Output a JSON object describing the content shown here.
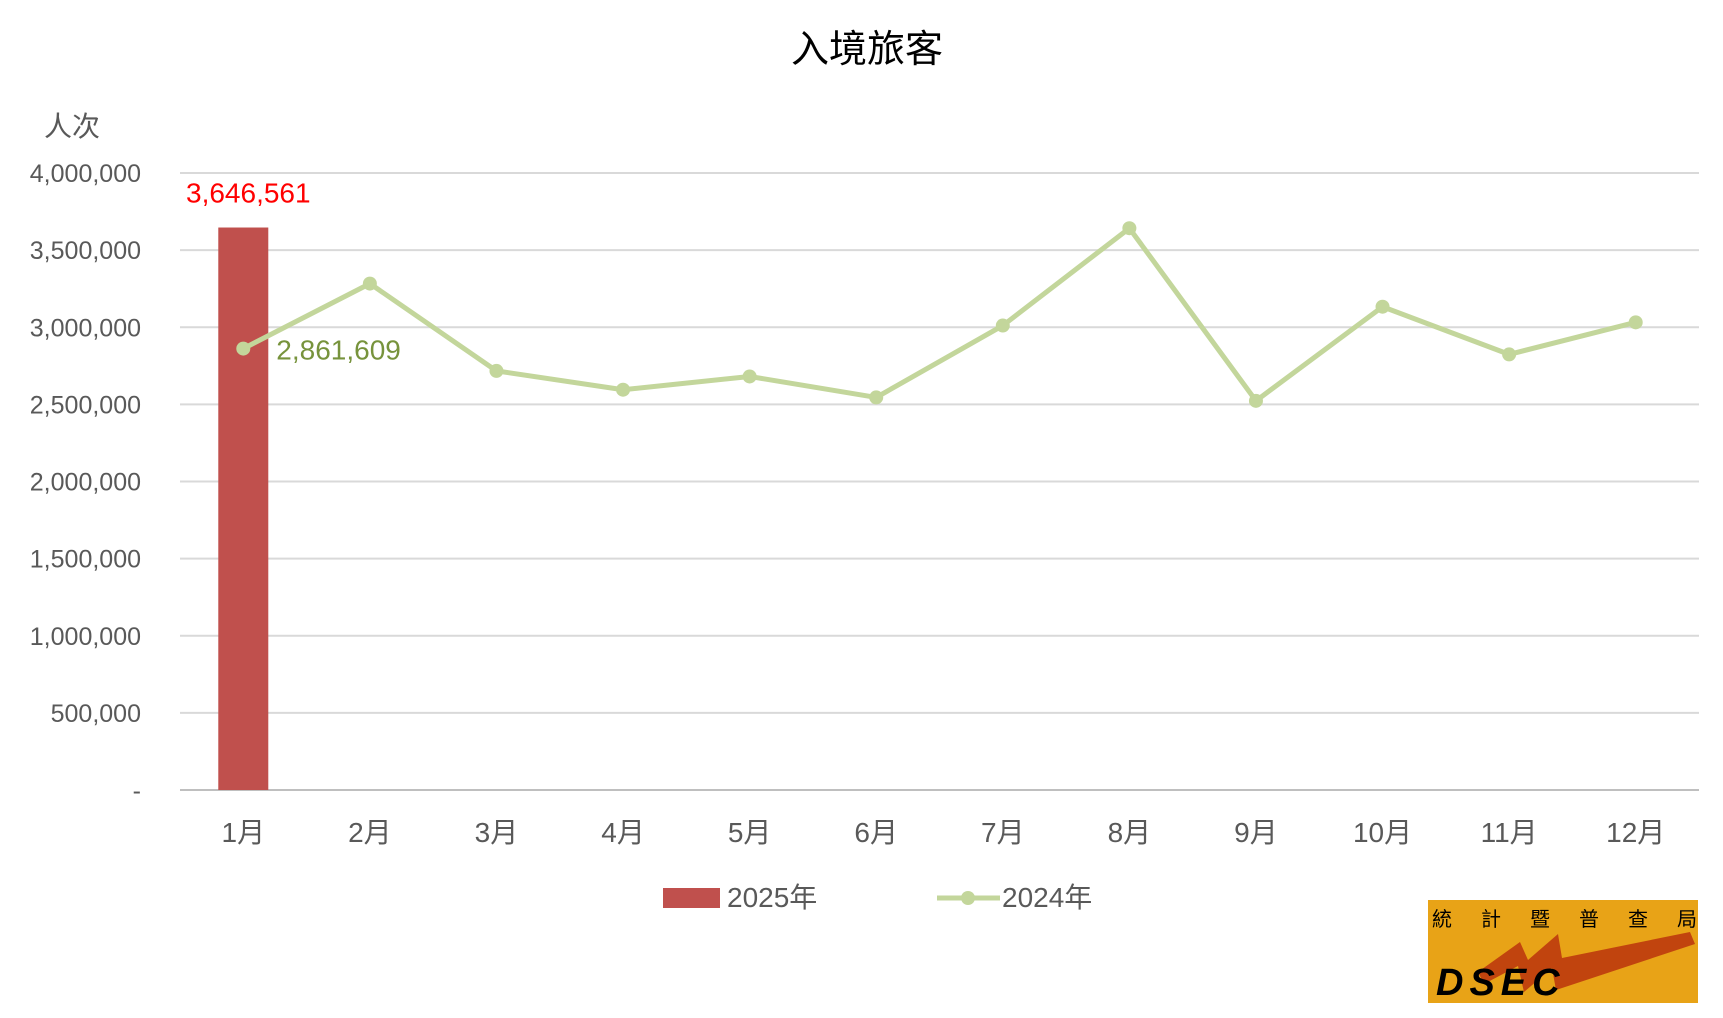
{
  "chart_data": {
    "type": "bar+line",
    "title": "入境旅客",
    "ylabel": "人次",
    "xlabel": "",
    "ylim": [
      0,
      4000000
    ],
    "yticks": [
      0,
      500000,
      1000000,
      1500000,
      2000000,
      2500000,
      3000000,
      3500000,
      4000000
    ],
    "ytick_labels": [
      "-",
      "500,000",
      "1,000,000",
      "1,500,000",
      "2,000,000",
      "2,500,000",
      "3,000,000",
      "3,500,000",
      "4,000,000"
    ],
    "categories": [
      "1月",
      "2月",
      "3月",
      "4月",
      "5月",
      "6月",
      "7月",
      "8月",
      "9月",
      "10月",
      "11月",
      "12月"
    ],
    "grid": "horizontal",
    "legend_position": "bottom",
    "series": [
      {
        "name": "2025年",
        "type": "bar",
        "color": "#C0504D",
        "values": [
          3646561,
          null,
          null,
          null,
          null,
          null,
          null,
          null,
          null,
          null,
          null,
          null
        ],
        "data_label": "3,646,561",
        "data_label_color": "#FF0000"
      },
      {
        "name": "2024年",
        "type": "line",
        "color": "#C3D69B",
        "values": [
          2861609,
          3283000,
          2717000,
          2595000,
          2681000,
          2545000,
          3011000,
          3642000,
          2523000,
          3133000,
          2824000,
          3032000
        ],
        "data_label": "2,861,609",
        "data_label_color": "#77933C"
      }
    ]
  },
  "logo": {
    "text_cn": "統計暨普查局",
    "text_en": "DSEC",
    "bg": "#E8A317",
    "accent": "#C1440E"
  }
}
